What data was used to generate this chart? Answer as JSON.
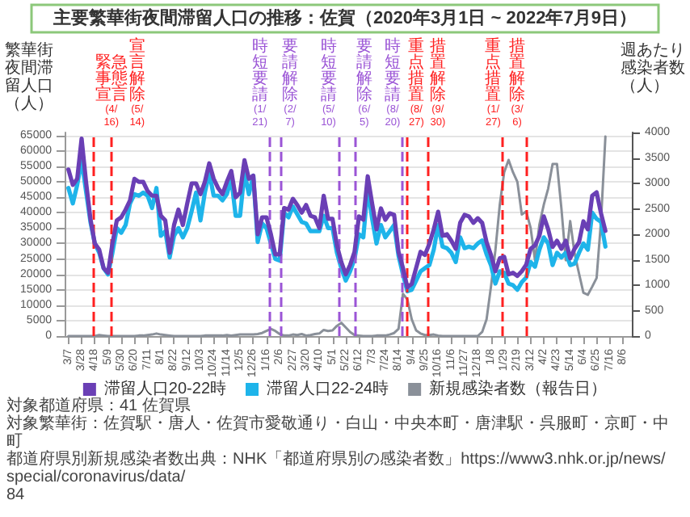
{
  "chart_data": {
    "type": "line",
    "title": "主要繁華街夜間滞留人口の推移：佐賀（2020年3月1日 ~ 2022年7月9日）",
    "ylabel": "繁華街夜間滞留人口（人）",
    "y2label": "週あたり感染者数（人）",
    "x": [
      "2020-03-07",
      "2020-03-14",
      "2020-03-21",
      "2020-03-28",
      "2020-04-04",
      "2020-04-11",
      "2020-04-18",
      "2020-04-25",
      "2020-05-02",
      "2020-05-09",
      "2020-05-16",
      "2020-05-23",
      "2020-05-30",
      "2020-06-06",
      "2020-06-13",
      "2020-06-20",
      "2020-06-27",
      "2020-07-04",
      "2020-07-11",
      "2020-07-18",
      "2020-07-25",
      "2020-08-01",
      "2020-08-08",
      "2020-08-15",
      "2020-08-22",
      "2020-08-29",
      "2020-09-05",
      "2020-09-12",
      "2020-09-19",
      "2020-09-26",
      "2020-10-03",
      "2020-10-10",
      "2020-10-17",
      "2020-10-24",
      "2020-10-31",
      "2020-11-07",
      "2020-11-14",
      "2020-11-21",
      "2020-11-28",
      "2020-12-05",
      "2020-12-12",
      "2020-12-19",
      "2020-12-26",
      "2021-01-02",
      "2021-01-09",
      "2021-01-16",
      "2021-01-23",
      "2021-01-30",
      "2021-02-06",
      "2021-02-13",
      "2021-02-20",
      "2021-02-27",
      "2021-03-06",
      "2021-03-13",
      "2021-03-20",
      "2021-03-27",
      "2021-04-03",
      "2021-04-10",
      "2021-04-17",
      "2021-04-24",
      "2021-05-01",
      "2021-05-08",
      "2021-05-15",
      "2021-05-22",
      "2021-05-29",
      "2021-06-05",
      "2021-06-12",
      "2021-06-19",
      "2021-06-26",
      "2021-07-03",
      "2021-07-10",
      "2021-07-17",
      "2021-07-24",
      "2021-07-31",
      "2021-08-07",
      "2021-08-14",
      "2021-08-21",
      "2021-08-28",
      "2021-09-04",
      "2021-09-11",
      "2021-09-18",
      "2021-09-25",
      "2021-10-02",
      "2021-10-09",
      "2021-10-16",
      "2021-10-23",
      "2021-10-30",
      "2021-11-06",
      "2021-11-13",
      "2021-11-20",
      "2021-11-27",
      "2021-12-04",
      "2021-12-11",
      "2021-12-18",
      "2021-12-25",
      "2022-01-01",
      "2022-01-08",
      "2022-01-15",
      "2022-01-22",
      "2022-01-29",
      "2022-02-05",
      "2022-02-12",
      "2022-02-19",
      "2022-02-26",
      "2022-03-05",
      "2022-03-12",
      "2022-03-19",
      "2022-03-26",
      "2022-04-02",
      "2022-04-09",
      "2022-04-16",
      "2022-04-23",
      "2022-04-30",
      "2022-05-07",
      "2022-05-14",
      "2022-05-21",
      "2022-05-28",
      "2022-06-04",
      "2022-06-11",
      "2022-06-18",
      "2022-06-25",
      "2022-07-02",
      "2022-07-09"
    ],
    "series": [
      {
        "name": "滞留人口20-22時",
        "color": "#6a3fb5",
        "values": [
          54000,
          49000,
          51000,
          64000,
          50000,
          38000,
          30000,
          28000,
          22000,
          20500,
          30000,
          37500,
          38500,
          41000,
          44000,
          51000,
          50000,
          50000,
          47000,
          45500,
          45500,
          39000,
          37500,
          27000,
          36000,
          41000,
          36000,
          43000,
          49500,
          49500,
          46000,
          50000,
          56000,
          51000,
          48000,
          46000,
          50000,
          53500,
          45000,
          46500,
          57000,
          51000,
          52000,
          33000,
          38500,
          38500,
          33000,
          26500,
          26500,
          41500,
          41000,
          44500,
          42500,
          40000,
          42500,
          39000,
          38500,
          35000,
          45500,
          38000,
          38000,
          29400,
          24000,
          20000,
          23000,
          27300,
          38800,
          37700,
          51800,
          43000,
          34600,
          41400,
          37700,
          39800,
          39300,
          27300,
          22100,
          15800,
          16900,
          22100,
          27300,
          26300,
          29900,
          34600,
          40300,
          32500,
          33000,
          30900,
          28300,
          36700,
          39300,
          38800,
          36700,
          38200,
          36700,
          30400,
          26300,
          21000,
          25200,
          25700,
          20000,
          20500,
          19500,
          21000,
          23100,
          28300,
          29400,
          32500,
          38800,
          34600,
          28900,
          30900,
          28300,
          30900,
          25200,
          28300,
          30400,
          37200,
          34600,
          45500,
          46600,
          39800,
          34100
        ]
      },
      {
        "name": "滞留人口22-24時",
        "color": "#1eb4ea",
        "values": [
          48000,
          43000,
          49000,
          57000,
          47000,
          37000,
          30000,
          27000,
          22000,
          20000,
          27000,
          35000,
          33500,
          36000,
          43000,
          46000,
          45500,
          46500,
          45500,
          41500,
          48000,
          32500,
          34000,
          25500,
          32500,
          35000,
          32000,
          35000,
          40500,
          46500,
          37500,
          46500,
          53000,
          45500,
          45500,
          44000,
          46000,
          51000,
          39000,
          39000,
          53000,
          46000,
          52000,
          30500,
          36500,
          35000,
          30000,
          25000,
          24500,
          40000,
          38500,
          42000,
          39500,
          37000,
          36500,
          34000,
          34000,
          34000,
          39000,
          35000,
          35000,
          27000,
          22000,
          18000,
          21000,
          25000,
          33000,
          32000,
          48000,
          38000,
          30000,
          36000,
          32000,
          34000,
          36000,
          26000,
          20000,
          14500,
          15000,
          18000,
          21000,
          22000,
          23000,
          28000,
          36000,
          29000,
          28500,
          27000,
          24000,
          32000,
          28500,
          29000,
          28500,
          30000,
          31000,
          26500,
          23000,
          17000,
          21000,
          20500,
          17000,
          16500,
          15000,
          17500,
          19000,
          24000,
          22500,
          28000,
          32000,
          30000,
          23000,
          27000,
          25500,
          27000,
          23000,
          23500,
          27000,
          30000,
          28000,
          40000,
          38000,
          37000,
          29000
        ]
      },
      {
        "name": "新規感染者数（報告日）",
        "color": "#8a9099",
        "axis": "y2",
        "values": [
          0,
          0,
          0,
          0,
          0,
          0,
          0,
          20,
          10,
          0,
          0,
          0,
          0,
          0,
          0,
          0,
          10,
          10,
          20,
          30,
          50,
          30,
          20,
          10,
          0,
          0,
          0,
          0,
          0,
          0,
          0,
          10,
          10,
          10,
          10,
          10,
          20,
          10,
          20,
          30,
          30,
          30,
          30,
          40,
          60,
          100,
          140,
          100,
          40,
          10,
          10,
          30,
          20,
          40,
          10,
          20,
          40,
          50,
          120,
          100,
          110,
          200,
          260,
          170,
          80,
          20,
          10,
          0,
          0,
          0,
          10,
          10,
          10,
          30,
          60,
          140,
          830,
          720,
          330,
          110,
          50,
          20,
          20,
          30,
          10,
          0,
          0,
          0,
          0,
          0,
          0,
          0,
          0,
          0,
          80,
          330,
          970,
          1680,
          2580,
          3220,
          3460,
          3220,
          3030,
          2390,
          2450,
          2130,
          1490,
          2190,
          2580,
          2900,
          3380,
          3380,
          2510,
          1490,
          2260,
          1620,
          1230,
          850,
          810,
          970,
          1140,
          2260,
          3920
        ]
      }
    ],
    "xlim": [
      "2020-03-01",
      "2022-08-20"
    ],
    "xticks": [
      {
        "value": "2020-03-07",
        "label": "3/7"
      },
      {
        "value": "2020-03-28",
        "label": "3/28"
      },
      {
        "value": "2020-04-18",
        "label": "4/18"
      },
      {
        "value": "2020-05-09",
        "label": "5/9"
      },
      {
        "value": "2020-05-30",
        "label": "5/30"
      },
      {
        "value": "2020-06-20",
        "label": "6/20"
      },
      {
        "value": "2020-07-11",
        "label": "7/11"
      },
      {
        "value": "2020-08-01",
        "label": "8/1"
      },
      {
        "value": "2020-08-22",
        "label": "8/22"
      },
      {
        "value": "2020-09-12",
        "label": "9/12"
      },
      {
        "value": "2020-10-03",
        "label": "10/3"
      },
      {
        "value": "2020-10-24",
        "label": "10/24"
      },
      {
        "value": "2020-11-14",
        "label": "11/14"
      },
      {
        "value": "2020-12-05",
        "label": "12/5"
      },
      {
        "value": "2020-12-26",
        "label": "12/26"
      },
      {
        "value": "2021-01-16",
        "label": "1/16"
      },
      {
        "value": "2021-02-06",
        "label": "2/6"
      },
      {
        "value": "2021-02-27",
        "label": "2/27"
      },
      {
        "value": "2021-03-20",
        "label": "3/20"
      },
      {
        "value": "2021-04-10",
        "label": "4/10"
      },
      {
        "value": "2021-05-01",
        "label": "5/1"
      },
      {
        "value": "2021-05-22",
        "label": "5/22"
      },
      {
        "value": "2021-06-12",
        "label": "6/12"
      },
      {
        "value": "2021-07-03",
        "label": "7/3"
      },
      {
        "value": "2021-07-24",
        "label": "7/24"
      },
      {
        "value": "2021-08-14",
        "label": "8/14"
      },
      {
        "value": "2021-09-04",
        "label": "9/4"
      },
      {
        "value": "2021-09-25",
        "label": "9/25"
      },
      {
        "value": "2021-10-16",
        "label": "10/16"
      },
      {
        "value": "2021-11-06",
        "label": "11/6"
      },
      {
        "value": "2021-11-27",
        "label": "11/27"
      },
      {
        "value": "2021-12-18",
        "label": "12/18"
      },
      {
        "value": "2022-01-08",
        "label": "1/8"
      },
      {
        "value": "2022-01-29",
        "label": "1/29"
      },
      {
        "value": "2022-02-19",
        "label": "2/19"
      },
      {
        "value": "2022-03-12",
        "label": "3/12"
      },
      {
        "value": "2022-04-02",
        "label": "4/2"
      },
      {
        "value": "2022-04-23",
        "label": "4/23"
      },
      {
        "value": "2022-05-14",
        "label": "5/14"
      },
      {
        "value": "2022-06-04",
        "label": "6/4"
      },
      {
        "value": "2022-06-25",
        "label": "6/25"
      },
      {
        "value": "2022-07-16",
        "label": "7/16"
      },
      {
        "value": "2022-08-06",
        "label": "8/6"
      }
    ],
    "ylim": [
      0,
      66000
    ],
    "yticks": [
      0,
      5000,
      10000,
      15000,
      20000,
      25000,
      30000,
      35000,
      40000,
      45000,
      50000,
      55000,
      60000,
      65000
    ],
    "y2lim": [
      0,
      4000
    ],
    "y2ticks": [
      0,
      500,
      1000,
      1500,
      2000,
      2500,
      3000,
      3500,
      4000
    ],
    "ref_lines": [
      {
        "axis": "x",
        "value": "2020-04-16",
        "label": "緊急事態宣言(4/16)",
        "color": "#ff2020",
        "line_style": "dashed"
      },
      {
        "axis": "x",
        "value": "2020-05-14",
        "label": "宣言解除(5/14)",
        "color": "#ff2020",
        "line_style": "dashed"
      },
      {
        "axis": "x",
        "value": "2021-01-21",
        "label": "時短要請(1/21)",
        "color": "#9b55d6",
        "line_style": "dashed"
      },
      {
        "axis": "x",
        "value": "2021-02-07",
        "label": "要請解除(2/7)",
        "color": "#9b55d6",
        "line_style": "dashed"
      },
      {
        "axis": "x",
        "value": "2021-05-10",
        "label": "時短要請(5/10)",
        "color": "#9b55d6",
        "line_style": "dashed"
      },
      {
        "axis": "x",
        "value": "2021-06-05",
        "label": "要請解除(6/5)",
        "color": "#9b55d6",
        "line_style": "dashed"
      },
      {
        "axis": "x",
        "value": "2021-08-20",
        "label": "時短要請(8/20)",
        "color": "#9b55d6",
        "line_style": "dashed"
      },
      {
        "axis": "x",
        "value": "2021-08-27",
        "label": "重点措置(8/27)",
        "color": "#ff2020",
        "line_style": "dashed"
      },
      {
        "axis": "x",
        "value": "2021-09-30",
        "label": "措置解除(9/30)",
        "color": "#ff2020",
        "line_style": "dashed"
      },
      {
        "axis": "x",
        "value": "2022-01-27",
        "label": "重点措置(1/27)",
        "color": "#ff2020",
        "line_style": "dashed"
      },
      {
        "axis": "x",
        "value": "2022-03-06",
        "label": "措置解除(3/6)",
        "color": "#ff2020",
        "line_style": "dashed"
      }
    ],
    "grid": "y",
    "legend": "bottom",
    "marker": "none",
    "line_style": "solid",
    "annotations": [
      "対象都道府県：41 佐賀県",
      "対象繁華街：佐賀駅・唐人・佐賀市愛敬通り・白山・中央本町・唐津駅・呉服町・京町・中町",
      "都道府県別新規感染者数出典：NHK「都道府県別の感染者数」https://www3.nhk.or.jp/news/special/coronavirus/data/",
      "84"
    ]
  }
}
